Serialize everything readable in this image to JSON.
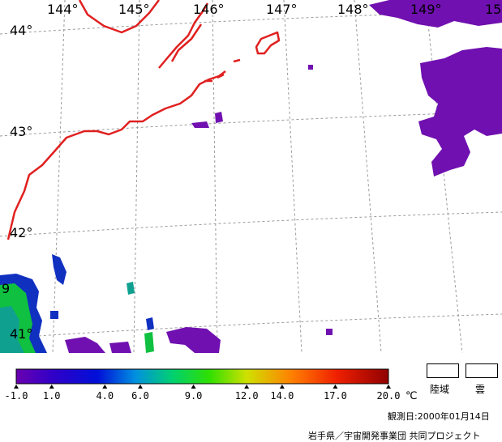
{
  "map": {
    "lon_labels": [
      "144°",
      "145°",
      "146°",
      "147°",
      "148°",
      "149°",
      "15"
    ],
    "lat_labels": [
      "44°",
      "43°",
      "42°",
      "41°"
    ],
    "partial_label": "9",
    "colors": {
      "coastline": "#e02020",
      "cloud": "#7010b0",
      "grid": "#9a9a9a",
      "sst_green": "#10c040",
      "sst_teal": "#10a090",
      "sst_blue": "#1030c0"
    }
  },
  "colorbar": {
    "tick_labels": [
      "-1.0",
      "1.0",
      "4.0",
      "6.0",
      "9.0",
      "12.0",
      "14.0",
      "17.0",
      "20.0"
    ],
    "tick_values": [
      -1.0,
      1.0,
      4.0,
      6.0,
      9.0,
      12.0,
      14.0,
      17.0,
      20.0
    ],
    "unit": "℃",
    "range": [
      -1.0,
      20.0
    ]
  },
  "legend": {
    "land_label": "陸域",
    "cloud_label": "雲"
  },
  "footer": {
    "date": "観測日:2000年01月14日",
    "credit": "岩手県／宇宙開発事業団 共同プロジェクト"
  }
}
